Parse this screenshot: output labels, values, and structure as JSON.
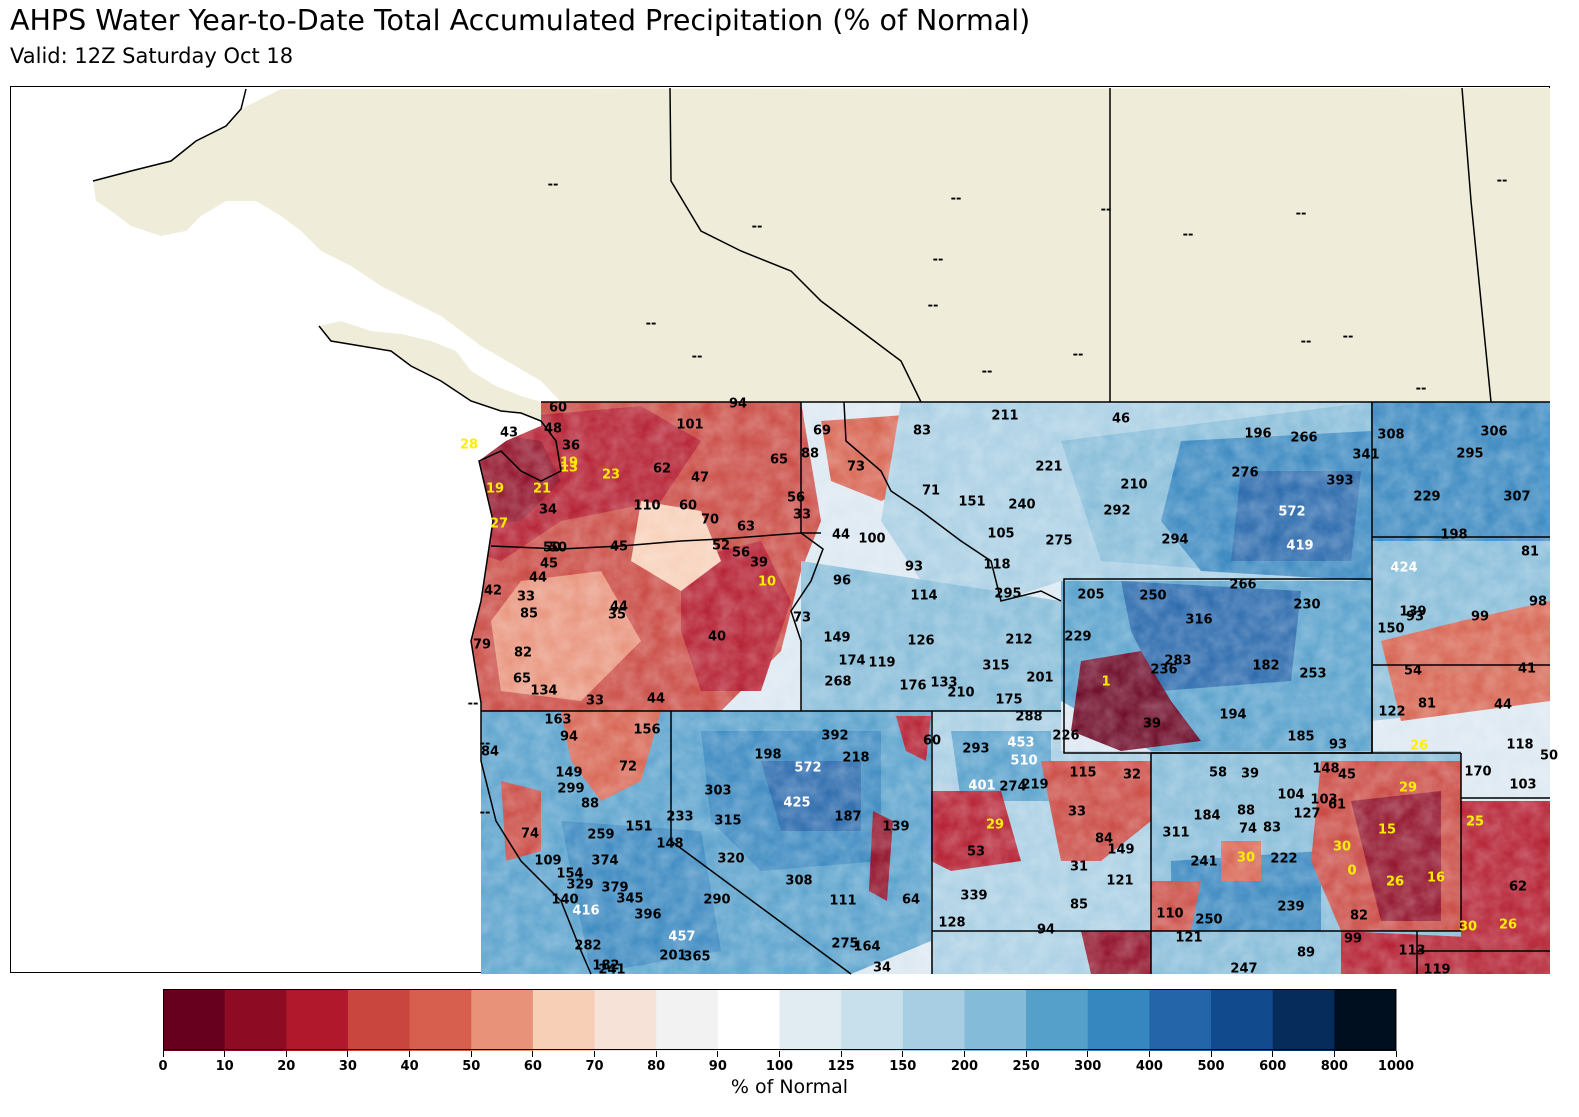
{
  "header": {
    "title": "AHPS Water Year-to-Date Total Accumulated Precipitation (% of Normal)",
    "subtitle": "Valid: 12Z Saturday Oct 18"
  },
  "colors": {
    "land_nodata": "#efedd9",
    "border": "#000000",
    "low_text": "#ffee00",
    "high_text": "#ffffff",
    "normal_text": "#000000"
  },
  "colorbar": {
    "label": "% of Normal",
    "ticks": [
      "0",
      "10",
      "20",
      "30",
      "40",
      "50",
      "60",
      "70",
      "80",
      "90",
      "100",
      "125",
      "150",
      "200",
      "250",
      "300",
      "400",
      "500",
      "600",
      "800",
      "1000"
    ],
    "colors": [
      "#67001f",
      "#8e0b24",
      "#b2182b",
      "#c9463f",
      "#d6604d",
      "#e8927a",
      "#f7cfb7",
      "#f7e2d8",
      "#f2f2f2",
      "#ffffff",
      "#e1ebf2",
      "#c8e0ec",
      "#a7cee3",
      "#84bbd8",
      "#559fcb",
      "#3686bf",
      "#2465aa",
      "#124a8e",
      "#062c5b",
      "#000f1f"
    ]
  },
  "no_data_label": "--",
  "no_data_marks": [
    [
      552,
      184
    ],
    [
      756,
      226
    ],
    [
      955,
      198
    ],
    [
      1105,
      209
    ],
    [
      1300,
      213
    ],
    [
      1187,
      234
    ],
    [
      1501,
      180
    ],
    [
      937,
      259
    ],
    [
      932,
      305
    ],
    [
      650,
      323
    ],
    [
      696,
      356
    ],
    [
      1077,
      354
    ],
    [
      1305,
      341
    ],
    [
      1347,
      336
    ],
    [
      986,
      371
    ],
    [
      1420,
      388
    ],
    [
      472,
      703
    ],
    [
      484,
      743
    ],
    [
      484,
      812
    ]
  ],
  "stations": [
    [
      "60",
      557,
      407,
      "b"
    ],
    [
      "94",
      737,
      403,
      "b"
    ],
    [
      "43",
      508,
      432,
      "b"
    ],
    [
      "48",
      552,
      428,
      "b"
    ],
    [
      "101",
      689,
      424,
      "b"
    ],
    [
      "69",
      821,
      430,
      "b"
    ],
    [
      "83",
      921,
      430,
      "b"
    ],
    [
      "211",
      1004,
      415,
      "b"
    ],
    [
      "46",
      1120,
      418,
      "b"
    ],
    [
      "196",
      1257,
      433,
      "b"
    ],
    [
      "266",
      1303,
      437,
      "b"
    ],
    [
      "308",
      1390,
      434,
      "b"
    ],
    [
      "306",
      1493,
      431,
      "b"
    ],
    [
      "28",
      468,
      444,
      "y"
    ],
    [
      "36",
      570,
      445,
      "b"
    ],
    [
      "88",
      809,
      453,
      "b"
    ],
    [
      "65",
      778,
      459,
      "b"
    ],
    [
      "73",
      855,
      466,
      "b"
    ],
    [
      "221",
      1048,
      466,
      "b"
    ],
    [
      "341",
      1365,
      454,
      "b"
    ],
    [
      "295",
      1469,
      453,
      "b"
    ],
    [
      "19",
      568,
      462,
      "y"
    ],
    [
      "13",
      568,
      467,
      "y"
    ],
    [
      "23",
      610,
      474,
      "y"
    ],
    [
      "62",
      661,
      468,
      "b"
    ],
    [
      "47",
      699,
      477,
      "b"
    ],
    [
      "276",
      1244,
      472,
      "b"
    ],
    [
      "393",
      1339,
      480,
      "b"
    ],
    [
      "210",
      1133,
      484,
      "b"
    ],
    [
      "19",
      494,
      488,
      "y"
    ],
    [
      "21",
      541,
      488,
      "y"
    ],
    [
      "71",
      930,
      490,
      "b"
    ],
    [
      "151",
      971,
      501,
      "b"
    ],
    [
      "240",
      1021,
      504,
      "b"
    ],
    [
      "229",
      1426,
      496,
      "b"
    ],
    [
      "307",
      1516,
      496,
      "b"
    ],
    [
      "34",
      547,
      509,
      "b"
    ],
    [
      "110",
      646,
      505,
      "b"
    ],
    [
      "60",
      687,
      505,
      "b"
    ],
    [
      "56",
      795,
      497,
      "b"
    ],
    [
      "33",
      801,
      514,
      "b"
    ],
    [
      "292",
      1116,
      510,
      "b"
    ],
    [
      "572",
      1291,
      511,
      "w"
    ],
    [
      "27",
      498,
      523,
      "y"
    ],
    [
      "70",
      709,
      519,
      "b"
    ],
    [
      "63",
      745,
      526,
      "b"
    ],
    [
      "44",
      840,
      534,
      "b"
    ],
    [
      "100",
      871,
      538,
      "b"
    ],
    [
      "105",
      1000,
      533,
      "b"
    ],
    [
      "275",
      1058,
      540,
      "b"
    ],
    [
      "294",
      1174,
      539,
      "b"
    ],
    [
      "198",
      1453,
      534,
      "b"
    ],
    [
      "50",
      551,
      547,
      "b"
    ],
    [
      "50",
      557,
      547,
      "b"
    ],
    [
      "45",
      618,
      546,
      "b"
    ],
    [
      "52",
      720,
      545,
      "b"
    ],
    [
      "56",
      740,
      552,
      "b"
    ],
    [
      "419",
      1299,
      545,
      "w"
    ],
    [
      "81",
      1529,
      551,
      "b"
    ],
    [
      "45",
      548,
      563,
      "b"
    ],
    [
      "39",
      758,
      562,
      "b"
    ],
    [
      "93",
      913,
      566,
      "b"
    ],
    [
      "118",
      996,
      564,
      "b"
    ],
    [
      "424",
      1403,
      567,
      "w"
    ],
    [
      "44",
      537,
      577,
      "b"
    ],
    [
      "10",
      766,
      581,
      "y"
    ],
    [
      "96",
      841,
      580,
      "b"
    ],
    [
      "266",
      1242,
      584,
      "b"
    ],
    [
      "42",
      492,
      590,
      "b"
    ],
    [
      "33",
      525,
      596,
      "b"
    ],
    [
      "114",
      923,
      595,
      "b"
    ],
    [
      "295",
      1007,
      593,
      "b"
    ],
    [
      "205",
      1090,
      594,
      "b"
    ],
    [
      "250",
      1152,
      595,
      "b"
    ],
    [
      "230",
      1306,
      604,
      "b"
    ],
    [
      "98",
      1537,
      601,
      "b"
    ],
    [
      "85",
      528,
      613,
      "b"
    ],
    [
      "44",
      618,
      606,
      "b"
    ],
    [
      "35",
      616,
      614,
      "b"
    ],
    [
      "73",
      801,
      617,
      "b"
    ],
    [
      "316",
      1198,
      619,
      "b"
    ],
    [
      "139",
      1412,
      611,
      "b"
    ],
    [
      "93",
      1414,
      616,
      "b"
    ],
    [
      "99",
      1479,
      616,
      "b"
    ],
    [
      "40",
      716,
      636,
      "b"
    ],
    [
      "149",
      836,
      637,
      "b"
    ],
    [
      "126",
      920,
      640,
      "b"
    ],
    [
      "212",
      1018,
      639,
      "b"
    ],
    [
      "229",
      1077,
      636,
      "b"
    ],
    [
      "150",
      1390,
      628,
      "b"
    ],
    [
      "79",
      481,
      644,
      "b"
    ],
    [
      "82",
      522,
      652,
      "b"
    ],
    [
      "174",
      851,
      660,
      "b"
    ],
    [
      "119",
      881,
      662,
      "b"
    ],
    [
      "283",
      1177,
      660,
      "b"
    ],
    [
      "236",
      1163,
      669,
      "b"
    ],
    [
      "315",
      995,
      665,
      "b"
    ],
    [
      "182",
      1265,
      665,
      "b"
    ],
    [
      "253",
      1312,
      673,
      "b"
    ],
    [
      "54",
      1412,
      670,
      "b"
    ],
    [
      "41",
      1526,
      668,
      "b"
    ],
    [
      "65",
      521,
      678,
      "b"
    ],
    [
      "134",
      543,
      690,
      "b"
    ],
    [
      "268",
      837,
      681,
      "b"
    ],
    [
      "176",
      912,
      685,
      "b"
    ],
    [
      "133",
      943,
      682,
      "b"
    ],
    [
      "210",
      960,
      692,
      "b"
    ],
    [
      "201",
      1039,
      677,
      "b"
    ],
    [
      "1",
      1105,
      681,
      "y"
    ],
    [
      "33",
      594,
      700,
      "b"
    ],
    [
      "44",
      655,
      698,
      "b"
    ],
    [
      "175",
      1008,
      699,
      "b"
    ],
    [
      "81",
      1426,
      703,
      "b"
    ],
    [
      "44",
      1502,
      704,
      "b"
    ],
    [
      "163",
      557,
      719,
      "b"
    ],
    [
      "156",
      646,
      729,
      "b"
    ],
    [
      "288",
      1028,
      716,
      "b"
    ],
    [
      "194",
      1232,
      714,
      "b"
    ],
    [
      "122",
      1391,
      711,
      "b"
    ],
    [
      "39",
      1151,
      723,
      "b"
    ],
    [
      "94",
      568,
      736,
      "b"
    ],
    [
      "392",
      834,
      735,
      "b"
    ],
    [
      "60",
      931,
      740,
      "b"
    ],
    [
      "226",
      1065,
      735,
      "b"
    ],
    [
      "453",
      1020,
      742,
      "w"
    ],
    [
      "185",
      1300,
      736,
      "b"
    ],
    [
      "93",
      1337,
      744,
      "b"
    ],
    [
      "26",
      1418,
      745,
      "y"
    ],
    [
      "118",
      1519,
      744,
      "b"
    ],
    [
      "84",
      489,
      751,
      "b"
    ],
    [
      "198",
      767,
      754,
      "b"
    ],
    [
      "218",
      855,
      757,
      "b"
    ],
    [
      "293",
      975,
      748,
      "b"
    ],
    [
      "510",
      1023,
      760,
      "w"
    ],
    [
      "50",
      1548,
      755,
      "b"
    ],
    [
      "149",
      568,
      772,
      "b"
    ],
    [
      "72",
      627,
      766,
      "b"
    ],
    [
      "572",
      807,
      767,
      "w"
    ],
    [
      "115",
      1082,
      772,
      "b"
    ],
    [
      "32",
      1131,
      774,
      "b"
    ],
    [
      "58",
      1217,
      772,
      "b"
    ],
    [
      "39",
      1249,
      773,
      "b"
    ],
    [
      "148",
      1325,
      768,
      "b"
    ],
    [
      "45",
      1346,
      774,
      "b"
    ],
    [
      "170",
      1477,
      771,
      "b"
    ],
    [
      "299",
      570,
      788,
      "b"
    ],
    [
      "303",
      717,
      790,
      "b"
    ],
    [
      "401",
      981,
      785,
      "w"
    ],
    [
      "274",
      1012,
      786,
      "b"
    ],
    [
      "219",
      1034,
      784,
      "b"
    ],
    [
      "104",
      1290,
      794,
      "b"
    ],
    [
      "103",
      1323,
      799,
      "b"
    ],
    [
      "61",
      1336,
      804,
      "b"
    ],
    [
      "29",
      1407,
      787,
      "y"
    ],
    [
      "103",
      1522,
      784,
      "b"
    ],
    [
      "88",
      589,
      803,
      "b"
    ],
    [
      "425",
      796,
      802,
      "w"
    ],
    [
      "33",
      1076,
      811,
      "b"
    ],
    [
      "88",
      1245,
      810,
      "b"
    ],
    [
      "127",
      1306,
      813,
      "b"
    ],
    [
      "184",
      1206,
      815,
      "b"
    ],
    [
      "233",
      679,
      816,
      "b"
    ],
    [
      "315",
      727,
      820,
      "b"
    ],
    [
      "187",
      847,
      816,
      "b"
    ],
    [
      "151",
      638,
      826,
      "b"
    ],
    [
      "139",
      895,
      826,
      "b"
    ],
    [
      "29",
      994,
      824,
      "y"
    ],
    [
      "74",
      1247,
      828,
      "b"
    ],
    [
      "83",
      1271,
      827,
      "b"
    ],
    [
      "15",
      1386,
      829,
      "y"
    ],
    [
      "25",
      1474,
      821,
      "y"
    ],
    [
      "74",
      529,
      833,
      "b"
    ],
    [
      "259",
      600,
      834,
      "b"
    ],
    [
      "148",
      669,
      843,
      "b"
    ],
    [
      "84",
      1103,
      838,
      "b"
    ],
    [
      "311",
      1175,
      832,
      "b"
    ],
    [
      "30",
      1341,
      846,
      "y"
    ],
    [
      "53",
      975,
      851,
      "b"
    ],
    [
      "149",
      1120,
      849,
      "b"
    ],
    [
      "320",
      730,
      858,
      "b"
    ],
    [
      "30",
      1245,
      857,
      "y"
    ],
    [
      "241",
      1203,
      861,
      "b"
    ],
    [
      "222",
      1283,
      858,
      "b"
    ],
    [
      "109",
      547,
      860,
      "b"
    ],
    [
      "374",
      604,
      860,
      "b"
    ],
    [
      "31",
      1078,
      866,
      "b"
    ],
    [
      "0",
      1351,
      870,
      "y"
    ],
    [
      "154",
      569,
      873,
      "b"
    ],
    [
      "308",
      798,
      880,
      "b"
    ],
    [
      "121",
      1119,
      880,
      "b"
    ],
    [
      "26",
      1394,
      881,
      "y"
    ],
    [
      "16",
      1435,
      877,
      "y"
    ],
    [
      "62",
      1517,
      886,
      "b"
    ],
    [
      "329",
      579,
      884,
      "b"
    ],
    [
      "379",
      614,
      887,
      "b"
    ],
    [
      "140",
      564,
      899,
      "b"
    ],
    [
      "345",
      629,
      898,
      "b"
    ],
    [
      "290",
      716,
      899,
      "b"
    ],
    [
      "111",
      842,
      900,
      "b"
    ],
    [
      "64",
      910,
      899,
      "b"
    ],
    [
      "339",
      973,
      895,
      "b"
    ],
    [
      "85",
      1078,
      904,
      "b"
    ],
    [
      "239",
      1290,
      906,
      "b"
    ],
    [
      "416",
      585,
      910,
      "w"
    ],
    [
      "396",
      647,
      914,
      "b"
    ],
    [
      "110",
      1169,
      913,
      "b"
    ],
    [
      "250",
      1208,
      919,
      "b"
    ],
    [
      "82",
      1358,
      915,
      "b"
    ],
    [
      "30",
      1467,
      926,
      "y"
    ],
    [
      "26",
      1507,
      924,
      "y"
    ],
    [
      "128",
      951,
      922,
      "b"
    ],
    [
      "94",
      1045,
      929,
      "b"
    ],
    [
      "457",
      681,
      936,
      "w"
    ],
    [
      "121",
      1188,
      937,
      "b"
    ],
    [
      "99",
      1352,
      938,
      "b"
    ],
    [
      "282",
      587,
      945,
      "b"
    ],
    [
      "275",
      844,
      943,
      "b"
    ],
    [
      "164",
      866,
      946,
      "b"
    ],
    [
      "89",
      1305,
      952,
      "b"
    ],
    [
      "113",
      1411,
      950,
      "b"
    ],
    [
      "201",
      672,
      955,
      "b"
    ],
    [
      "365",
      696,
      956,
      "b"
    ],
    [
      "182",
      605,
      965,
      "b"
    ],
    [
      "241",
      611,
      969,
      "b"
    ],
    [
      "34",
      881,
      967,
      "b"
    ],
    [
      "247",
      1243,
      968,
      "b"
    ],
    [
      "119",
      1436,
      969,
      "b"
    ]
  ]
}
